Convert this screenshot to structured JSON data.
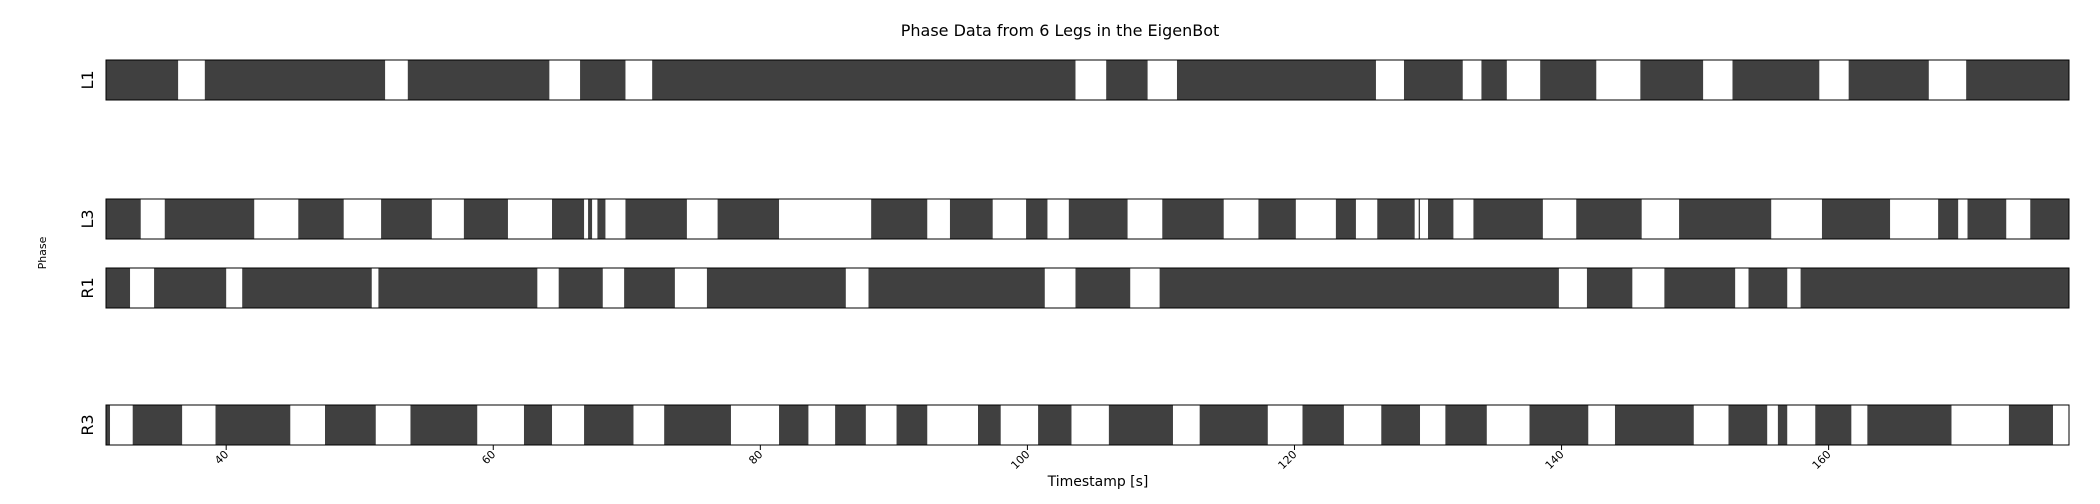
{
  "chart_data": {
    "type": "bar",
    "title": "Phase Data from 6 Legs in the EigenBot",
    "xlabel": "Timestamp [s]",
    "ylabel": "Phase",
    "xlim": [
      31,
      178
    ],
    "xticks": [
      {
        "value": 40,
        "label": "40"
      },
      {
        "value": 60,
        "label": "60"
      },
      {
        "value": 80,
        "label": "80"
      },
      {
        "value": 100,
        "label": "100"
      },
      {
        "value": 120,
        "label": "120"
      },
      {
        "value": 140,
        "label": "140"
      },
      {
        "value": 160,
        "label": "160"
      }
    ],
    "colors": {
      "stance": "#404040",
      "swing": "#ffffff",
      "border": "#000000"
    },
    "legs": [
      {
        "label": "L1",
        "stance_intervals": [
          [
            31.0,
            36.4
          ],
          [
            38.4,
            51.9
          ],
          [
            53.6,
            64.2
          ],
          [
            66.5,
            69.9
          ],
          [
            71.9,
            103.6
          ],
          [
            105.9,
            109.0
          ],
          [
            111.2,
            126.1
          ],
          [
            128.2,
            132.6
          ],
          [
            134.0,
            135.9
          ],
          [
            138.4,
            142.6
          ],
          [
            145.9,
            150.6
          ],
          [
            152.8,
            159.3
          ],
          [
            161.5,
            167.5
          ],
          [
            170.3,
            178.0
          ]
        ]
      },
      {
        "label": "L3",
        "stance_intervals": [
          [
            31.0,
            33.6
          ],
          [
            35.4,
            42.1
          ],
          [
            45.4,
            48.8
          ],
          [
            51.6,
            55.4
          ],
          [
            57.8,
            61.1
          ],
          [
            64.4,
            66.8
          ],
          [
            67.1,
            67.4
          ],
          [
            67.8,
            68.4
          ],
          [
            69.9,
            74.5
          ],
          [
            76.8,
            81.4
          ],
          [
            88.3,
            92.5
          ],
          [
            94.2,
            97.4
          ],
          [
            99.9,
            101.5
          ],
          [
            103.1,
            107.5
          ],
          [
            110.1,
            114.7
          ],
          [
            117.3,
            120.1
          ],
          [
            123.1,
            124.6
          ],
          [
            126.2,
            129.0
          ],
          [
            129.3,
            129.4
          ],
          [
            130.0,
            131.9
          ],
          [
            133.4,
            138.6
          ],
          [
            141.1,
            146.0
          ],
          [
            148.8,
            155.7
          ],
          [
            159.5,
            164.6
          ],
          [
            168.2,
            169.7
          ],
          [
            170.4,
            173.3
          ],
          [
            175.1,
            178.0
          ]
        ]
      },
      {
        "label": "R1",
        "stance_intervals": [
          [
            31.0,
            32.8
          ],
          [
            34.6,
            40.0
          ],
          [
            41.2,
            50.9
          ],
          [
            51.4,
            63.3
          ],
          [
            64.9,
            68.2
          ],
          [
            69.8,
            73.6
          ],
          [
            76.0,
            86.4
          ],
          [
            88.1,
            101.3
          ],
          [
            103.6,
            107.7
          ],
          [
            109.9,
            139.8
          ],
          [
            141.9,
            145.3
          ],
          [
            147.7,
            153.0
          ],
          [
            154.0,
            156.9
          ],
          [
            157.9,
            178.0
          ]
        ]
      },
      {
        "label": "R3",
        "stance_intervals": [
          [
            31.0,
            31.3
          ],
          [
            33.0,
            36.7
          ],
          [
            39.2,
            44.8
          ],
          [
            47.4,
            51.2
          ],
          [
            53.8,
            58.8
          ],
          [
            62.3,
            64.4
          ],
          [
            66.8,
            70.5
          ],
          [
            72.8,
            77.8
          ],
          [
            81.4,
            83.6
          ],
          [
            85.6,
            87.9
          ],
          [
            90.2,
            92.5
          ],
          [
            96.3,
            98.0
          ],
          [
            100.8,
            103.3
          ],
          [
            106.1,
            110.9
          ],
          [
            112.9,
            118.0
          ],
          [
            120.6,
            123.7
          ],
          [
            126.5,
            129.4
          ],
          [
            131.3,
            134.4
          ],
          [
            137.6,
            142.0
          ],
          [
            144.0,
            149.9
          ],
          [
            152.5,
            155.4
          ],
          [
            156.2,
            156.9
          ],
          [
            159.0,
            161.7
          ],
          [
            162.9,
            169.2
          ],
          [
            173.5,
            176.8
          ]
        ]
      }
    ]
  }
}
